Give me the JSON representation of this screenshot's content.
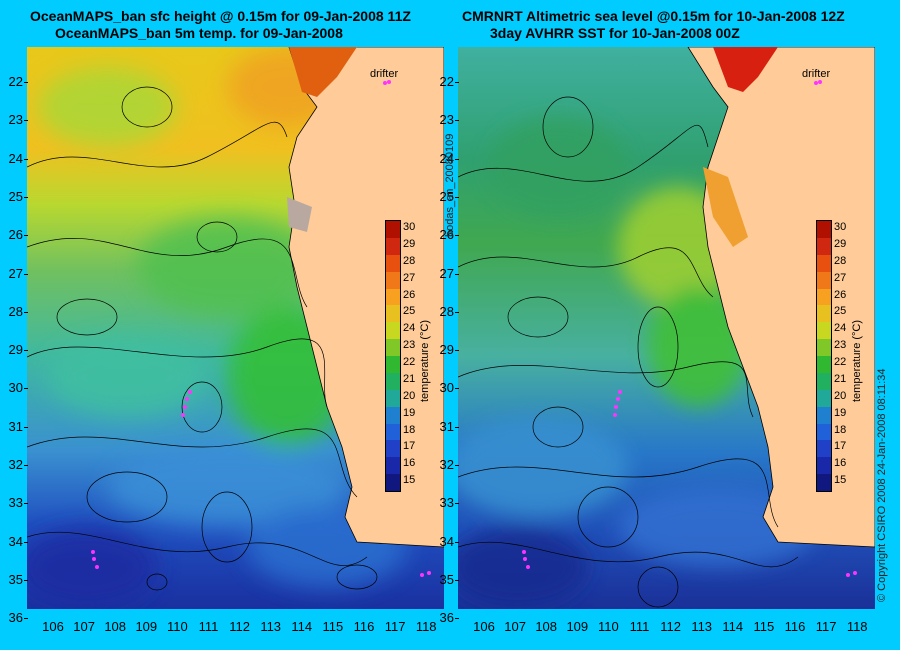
{
  "left": {
    "title1": "OceanMAPS_ban sfc height @ 0.15m for 09-Jan-2008 11Z",
    "title2": "OceanMAPS_ban 5m temp. for 09-Jan-2008"
  },
  "right": {
    "title1": "CMRNRT Altimetric sea level  @0.15m  for 10-Jan-2008 12Z",
    "title2": "3day AVHRR SST for 10-Jan-2008 00Z"
  },
  "yticks": [
    "22",
    "23",
    "24",
    "25",
    "26",
    "27",
    "28",
    "29",
    "30",
    "31",
    "32",
    "33",
    "34",
    "35",
    "36"
  ],
  "xticks": [
    "106",
    "107",
    "108",
    "109",
    "110",
    "111",
    "112",
    "113",
    "114",
    "115",
    "116",
    "117",
    "118"
  ],
  "colorbar": {
    "labels": [
      "30",
      "29",
      "28",
      "27",
      "26",
      "25",
      "24",
      "23",
      "22",
      "21",
      "20",
      "19",
      "18",
      "17",
      "16",
      "15"
    ],
    "title": "temperature (°C)"
  },
  "drifter_label": "drifter",
  "middle_text": "bodas_an_20080109",
  "right_text": "© Copyright CSIRO 2008    24-Jan-2008 08:11:34",
  "colors": {
    "background": "#00ccff",
    "land": "#ffcc99",
    "drifter": "#ff33ff"
  }
}
